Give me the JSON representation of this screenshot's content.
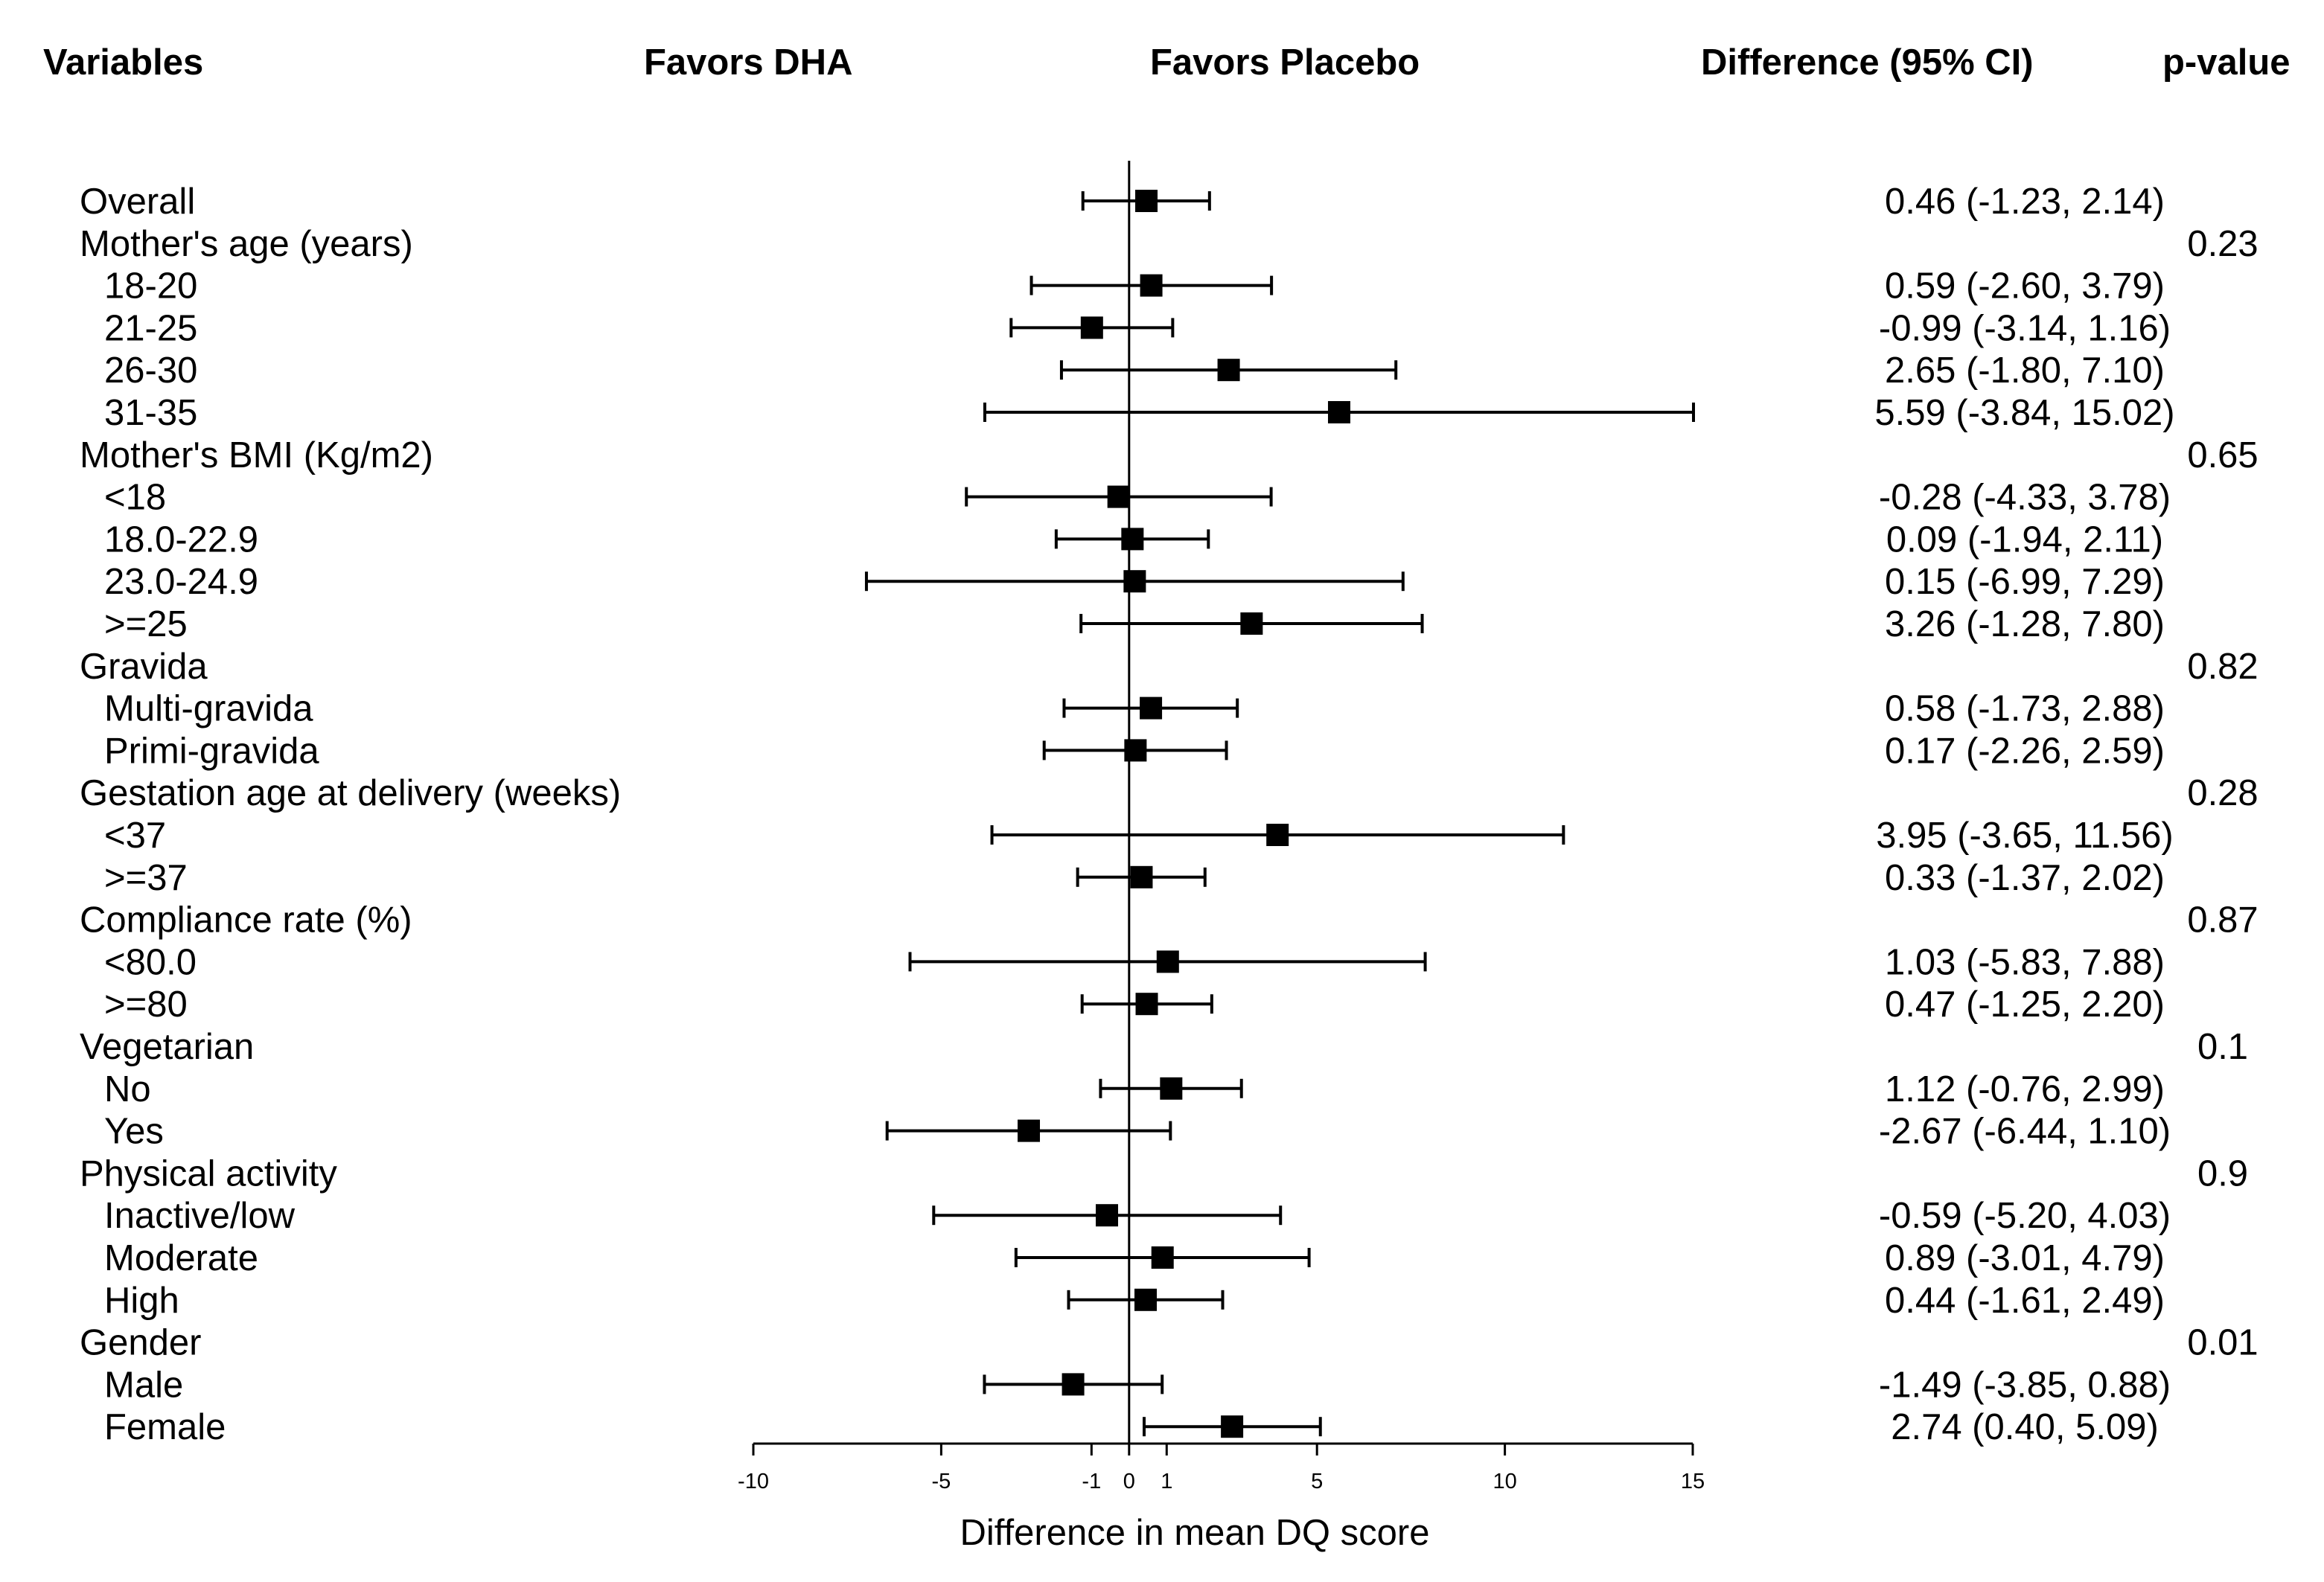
{
  "chart_data": {
    "type": "forest",
    "headers": {
      "variables": "Variables",
      "favors_left": "Favors DHA",
      "favors_right": "Favors Placebo",
      "difference": "Difference (95% CI)",
      "pvalue": "p-value"
    },
    "xlabel": "Difference in mean DQ score",
    "xlim": [
      -10,
      15
    ],
    "xticks": [
      -10,
      -5,
      -1,
      0,
      1,
      5,
      10,
      15
    ],
    "rows": [
      {
        "label": "Overall",
        "level": 0,
        "est": 0.46,
        "lo": -1.23,
        "hi": 2.14,
        "ci_text": "0.46 (-1.23, 2.14)",
        "p": ""
      },
      {
        "label": "Mother's age (years)",
        "level": 0,
        "p": "0.23"
      },
      {
        "label": "18-20",
        "level": 1,
        "est": 0.59,
        "lo": -2.6,
        "hi": 3.79,
        "ci_text": "0.59 (-2.60, 3.79)",
        "p": ""
      },
      {
        "label": "21-25",
        "level": 1,
        "est": -0.99,
        "lo": -3.14,
        "hi": 1.16,
        "ci_text": "-0.99 (-3.14, 1.16)",
        "p": ""
      },
      {
        "label": "26-30",
        "level": 1,
        "est": 2.65,
        "lo": -1.8,
        "hi": 7.1,
        "ci_text": "2.65 (-1.80, 7.10)",
        "p": ""
      },
      {
        "label": "31-35",
        "level": 1,
        "est": 5.59,
        "lo": -3.84,
        "hi": 15.02,
        "ci_text": "5.59 (-3.84, 15.02)",
        "p": ""
      },
      {
        "label": "Mother's BMI (Kg/m2)",
        "level": 0,
        "p": "0.65"
      },
      {
        "label": "<18",
        "level": 1,
        "est": -0.28,
        "lo": -4.33,
        "hi": 3.78,
        "ci_text": "-0.28 (-4.33, 3.78)",
        "p": ""
      },
      {
        "label": "18.0-22.9",
        "level": 1,
        "est": 0.09,
        "lo": -1.94,
        "hi": 2.11,
        "ci_text": "0.09 (-1.94, 2.11)",
        "p": ""
      },
      {
        "label": "23.0-24.9",
        "level": 1,
        "est": 0.15,
        "lo": -6.99,
        "hi": 7.29,
        "ci_text": "0.15 (-6.99, 7.29)",
        "p": ""
      },
      {
        "label": ">=25",
        "level": 1,
        "est": 3.26,
        "lo": -1.28,
        "hi": 7.8,
        "ci_text": "3.26 (-1.28, 7.80)",
        "p": ""
      },
      {
        "label": "Gravida",
        "level": 0,
        "p": "0.82"
      },
      {
        "label": "Multi-gravida",
        "level": 1,
        "est": 0.58,
        "lo": -1.73,
        "hi": 2.88,
        "ci_text": "0.58 (-1.73, 2.88)",
        "p": ""
      },
      {
        "label": "Primi-gravida",
        "level": 1,
        "est": 0.17,
        "lo": -2.26,
        "hi": 2.59,
        "ci_text": "0.17 (-2.26, 2.59)",
        "p": ""
      },
      {
        "label": "Gestation age at delivery (weeks)",
        "level": 0,
        "p": "0.28"
      },
      {
        "label": "<37",
        "level": 1,
        "est": 3.95,
        "lo": -3.65,
        "hi": 11.56,
        "ci_text": "3.95 (-3.65, 11.56)",
        "p": ""
      },
      {
        "label": ">=37",
        "level": 1,
        "est": 0.33,
        "lo": -1.37,
        "hi": 2.02,
        "ci_text": "0.33 (-1.37, 2.02)",
        "p": ""
      },
      {
        "label": "Compliance rate (%)",
        "level": 0,
        "p": "0.87"
      },
      {
        "label": "<80.0",
        "level": 1,
        "est": 1.03,
        "lo": -5.83,
        "hi": 7.88,
        "ci_text": "1.03 (-5.83, 7.88)",
        "p": ""
      },
      {
        "label": ">=80",
        "level": 1,
        "est": 0.47,
        "lo": -1.25,
        "hi": 2.2,
        "ci_text": "0.47 (-1.25, 2.20)",
        "p": ""
      },
      {
        "label": "Vegetarian",
        "level": 0,
        "p": "0.1"
      },
      {
        "label": "No",
        "level": 1,
        "est": 1.12,
        "lo": -0.76,
        "hi": 2.99,
        "ci_text": "1.12 (-0.76, 2.99)",
        "p": ""
      },
      {
        "label": "Yes",
        "level": 1,
        "est": -2.67,
        "lo": -6.44,
        "hi": 1.1,
        "ci_text": "-2.67 (-6.44, 1.10)",
        "p": ""
      },
      {
        "label": "Physical activity",
        "level": 0,
        "p": "0.9"
      },
      {
        "label": "Inactive/low",
        "level": 1,
        "est": -0.59,
        "lo": -5.2,
        "hi": 4.03,
        "ci_text": "-0.59 (-5.20, 4.03)",
        "p": ""
      },
      {
        "label": "Moderate",
        "level": 1,
        "est": 0.89,
        "lo": -3.01,
        "hi": 4.79,
        "ci_text": "0.89 (-3.01, 4.79)",
        "p": ""
      },
      {
        "label": "High",
        "level": 1,
        "est": 0.44,
        "lo": -1.61,
        "hi": 2.49,
        "ci_text": "0.44 (-1.61, 2.49)",
        "p": ""
      },
      {
        "label": "Gender",
        "level": 0,
        "p": "0.01"
      },
      {
        "label": "Male",
        "level": 1,
        "est": -1.49,
        "lo": -3.85,
        "hi": 0.88,
        "ci_text": "-1.49 (-3.85, 0.88)",
        "p": ""
      },
      {
        "label": "Female",
        "level": 1,
        "est": 2.74,
        "lo": 0.4,
        "hi": 5.09,
        "ci_text": "2.74 (0.40, 5.09)",
        "p": ""
      }
    ]
  }
}
